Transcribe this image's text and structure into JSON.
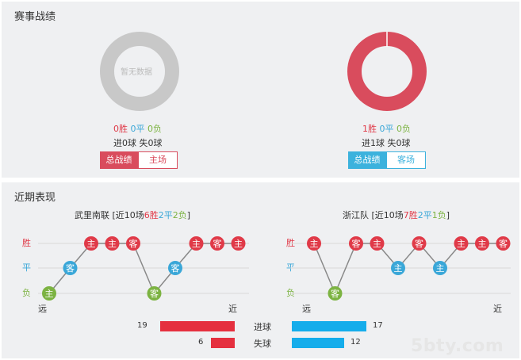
{
  "record": {
    "title": "赛事战绩",
    "left": {
      "empty_label": "暂无数据",
      "win": "0胜",
      "draw": "0平",
      "loss": "0负",
      "goals_for": "进0球",
      "goals_against": "失0球",
      "tab_active": "总战绩",
      "tab_other": "主场",
      "ring_color": "#c8c8c8"
    },
    "right": {
      "win": "1胜",
      "draw": "0平",
      "loss": "0负",
      "goals_for": "进1球",
      "goals_against": "失0球",
      "tab_active": "总战绩",
      "tab_other": "客场",
      "ring_color": "#d94c5d"
    }
  },
  "recent": {
    "title": "近期表现",
    "row_labels": {
      "win": "胜",
      "draw": "平",
      "loss": "负"
    },
    "far_label": "远",
    "near_label": "近",
    "colors": {
      "win": "#e03a48",
      "draw": "#3aa7d8",
      "loss": "#7cb342"
    },
    "teams": [
      {
        "name": "武里南联",
        "summary_prefix": " [近10场",
        "wins": "6胜",
        "draws": "2平",
        "losses": "2负",
        "summary_suffix": "]",
        "matches": [
          {
            "result": "loss",
            "venue": "主"
          },
          {
            "result": "draw",
            "venue": "客"
          },
          {
            "result": "win",
            "venue": "主"
          },
          {
            "result": "win",
            "venue": "主"
          },
          {
            "result": "win",
            "venue": "客"
          },
          {
            "result": "loss",
            "venue": "客"
          },
          {
            "result": "draw",
            "venue": "客"
          },
          {
            "result": "win",
            "venue": "主"
          },
          {
            "result": "win",
            "venue": "客"
          },
          {
            "result": "win",
            "venue": "主"
          }
        ]
      },
      {
        "name": "浙江队",
        "summary_prefix": " [近10场",
        "wins": "7胜",
        "draws": "2平",
        "losses": "1负",
        "summary_suffix": "]",
        "matches": [
          {
            "result": "win",
            "venue": "主"
          },
          {
            "result": "loss",
            "venue": "客"
          },
          {
            "result": "win",
            "venue": "客"
          },
          {
            "result": "win",
            "venue": "主"
          },
          {
            "result": "draw",
            "venue": "主"
          },
          {
            "result": "win",
            "venue": "客"
          },
          {
            "result": "draw",
            "venue": "主"
          },
          {
            "result": "win",
            "venue": "主"
          },
          {
            "result": "win",
            "venue": "主"
          },
          {
            "result": "win",
            "venue": "客"
          }
        ]
      }
    ],
    "goals": {
      "scored_label": "进球",
      "conceded_label": "失球",
      "left_scored": 19,
      "left_conceded": 6,
      "right_scored": 17,
      "right_conceded": 12
    }
  },
  "watermark": "5bty.com"
}
